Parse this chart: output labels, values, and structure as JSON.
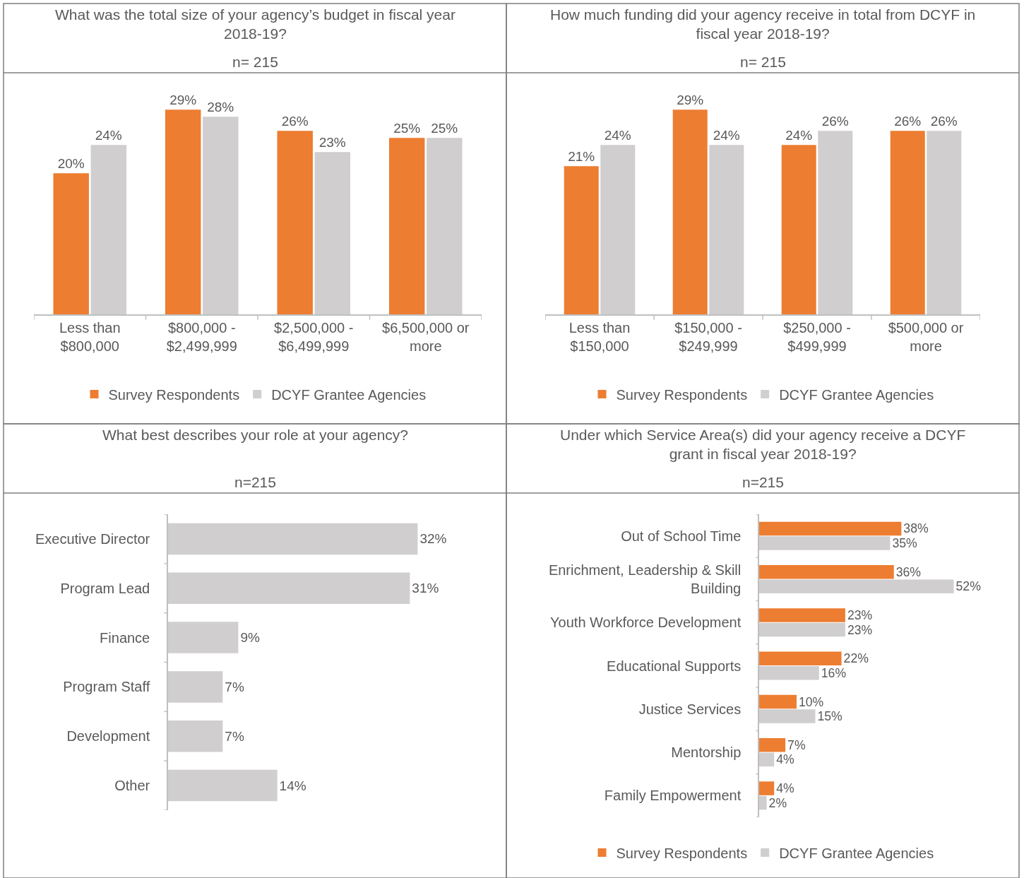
{
  "chart_data": [
    {
      "type": "bar",
      "title": "What was the total size of your agency’s budget in fiscal year 2018-19?",
      "subtitle": "n= 215",
      "categories": [
        "Less than $800,000",
        "$800,000 - $2,499,999",
        "$2,500,000 - $6,499,999",
        "$6,500,000 or more"
      ],
      "series": [
        {
          "name": "Survey Respondents",
          "color": "#ed7d31",
          "values": [
            20,
            29,
            26,
            25
          ],
          "value_labels": [
            "20%",
            "29%",
            "26%",
            "25%"
          ]
        },
        {
          "name": "DCYF Grantee Agencies",
          "color": "#d0cece",
          "values": [
            24,
            28,
            23,
            25
          ],
          "value_labels": [
            "24%",
            "28%",
            "23%",
            "25%"
          ]
        }
      ],
      "tick_labels": "x",
      "legend": "bottom"
    },
    {
      "type": "bar",
      "title": "How much funding did your agency receive in total from DCYF in fiscal year 2018-19?",
      "subtitle": "n= 215",
      "categories": [
        "Less than $150,000",
        "$150,000 - $249,999",
        "$250,000 - $499,999",
        "$500,000 or more"
      ],
      "series": [
        {
          "name": "Survey Respondents",
          "color": "#ed7d31",
          "values": [
            21,
            29,
            24,
            26
          ],
          "value_labels": [
            "21%",
            "29%",
            "24%",
            "26%"
          ]
        },
        {
          "name": "DCYF Grantee Agencies",
          "color": "#d0cece",
          "values": [
            24,
            24,
            26,
            26
          ],
          "value_labels": [
            "24%",
            "24%",
            "26%",
            "26%"
          ]
        }
      ],
      "tick_labels": "x",
      "legend": "bottom"
    },
    {
      "type": "bar",
      "orientation": "horizontal",
      "title": "What best describes your role at your agency?",
      "subtitle": "n=215",
      "categories": [
        "Executive Director",
        "Program Lead",
        "Finance",
        "Program Staff",
        "Development",
        "Other"
      ],
      "series": [
        {
          "color": "#d0cece",
          "values": [
            32,
            31,
            9,
            7,
            7,
            14
          ],
          "value_labels": [
            "32%",
            "31%",
            "9%",
            "7%",
            "7%",
            "14%"
          ]
        }
      ],
      "tick_labels": "y",
      "legend": false
    },
    {
      "type": "bar",
      "orientation": "horizontal",
      "title": "Under which Service Area(s) did your agency receive a DCYF grant in fiscal year 2018-19?",
      "subtitle": "n=215",
      "categories": [
        "Out of School Time",
        "Enrichment, Leadership & Skill Building",
        "Youth Workforce Development",
        "Educational Supports",
        "Justice Services",
        "Mentorship",
        "Family Empowerment"
      ],
      "series": [
        {
          "name": "Survey Respondents",
          "color": "#ed7d31",
          "values": [
            38,
            36,
            23,
            22,
            10,
            7,
            4
          ],
          "value_labels": [
            "38%",
            "36%",
            "23%",
            "22%",
            "10%",
            "7%",
            "4%"
          ]
        },
        {
          "name": "DCYF Grantee Agencies",
          "color": "#d0cece",
          "values": [
            35,
            52,
            23,
            16,
            15,
            4,
            2
          ],
          "value_labels": [
            "35%",
            "52%",
            "23%",
            "16%",
            "15%",
            "4%",
            "2%"
          ]
        }
      ],
      "tick_labels": "y",
      "legend": "bottom"
    }
  ]
}
